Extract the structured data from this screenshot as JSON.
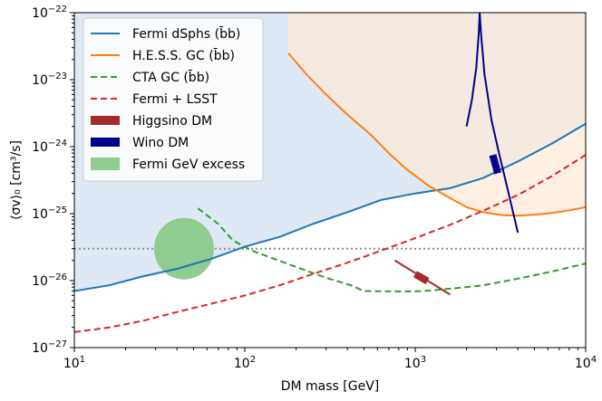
{
  "chart_data": {
    "type": "line",
    "xscale": "log",
    "yscale": "log",
    "xlim": [
      10,
      10000
    ],
    "ylim": [
      1e-27,
      1e-22
    ],
    "xlabel": "DM mass [GeV]",
    "ylabel": "⟨σv⟩₀ [cm³/s]",
    "x_ticks": [
      {
        "value": 10,
        "base": "10",
        "exp": "1"
      },
      {
        "value": 100,
        "base": "10",
        "exp": "2"
      },
      {
        "value": 1000,
        "base": "10",
        "exp": "3"
      },
      {
        "value": 10000,
        "base": "10",
        "exp": "4"
      }
    ],
    "y_ticks": [
      {
        "value": 1e-27,
        "base": "10",
        "exp": "−27"
      },
      {
        "value": 1e-26,
        "base": "10",
        "exp": "−26"
      },
      {
        "value": 1e-25,
        "base": "10",
        "exp": "−25"
      },
      {
        "value": 1e-24,
        "base": "10",
        "exp": "−24"
      },
      {
        "value": 1e-23,
        "base": "10",
        "exp": "−23"
      },
      {
        "value": 1e-22,
        "base": "10",
        "exp": "−22"
      }
    ],
    "thermal_relic": {
      "y": 3e-26,
      "color": "#8c8c8c"
    },
    "series": [
      {
        "name": "Fermi dSphs (b̄b)",
        "style": "solid",
        "color": "#1f77b4",
        "fill": "#dfe9f5",
        "x": [
          10,
          16,
          25,
          40,
          63,
          100,
          160,
          250,
          400,
          630,
          1000,
          1600,
          2500,
          4000,
          6300,
          10000
        ],
        "y": [
          7e-27,
          8.5e-27,
          1.15e-26,
          1.5e-26,
          2.1e-26,
          3.2e-26,
          4.5e-26,
          7e-26,
          1.05e-25,
          1.6e-25,
          2e-25,
          2.4e-25,
          3.4e-25,
          6e-25,
          1.1e-24,
          2.2e-24
        ]
      },
      {
        "name": "H.E.S.S. GC (b̄b)",
        "style": "solid",
        "color": "#ff7f0e",
        "fill": "#fce9d8",
        "x": [
          180,
          230,
          300,
          400,
          550,
          700,
          900,
          1200,
          1600,
          2000,
          2500,
          3200,
          4000,
          5000,
          6300,
          8000,
          10000
        ],
        "y": [
          2.5e-23,
          1.2e-23,
          6e-24,
          3e-24,
          1.5e-24,
          8e-25,
          4.5e-25,
          2.6e-25,
          1.7e-25,
          1.25e-25,
          1.05e-25,
          9.5e-26,
          9.3e-26,
          9.6e-26,
          1.02e-25,
          1.12e-25,
          1.25e-25
        ]
      },
      {
        "name": "CTA GC (b̄b)",
        "style": "dashed",
        "color": "#2ca02c",
        "x": [
          53,
          70,
          85,
          110,
          150,
          200,
          300,
          420,
          500,
          700,
          1000,
          1300,
          1800,
          2500,
          3500,
          5000,
          7000,
          10000
        ],
        "y": [
          1.2e-25,
          7e-26,
          4e-26,
          2.8e-26,
          2.1e-26,
          1.6e-26,
          1.1e-26,
          8.5e-27,
          7e-27,
          6.9e-27,
          6.9e-27,
          7.2e-27,
          7.8e-27,
          8.5e-27,
          1e-26,
          1.2e-26,
          1.45e-26,
          1.8e-26
        ]
      },
      {
        "name": "Fermi + LSST",
        "style": "dashed",
        "color": "#d62728",
        "x": [
          10,
          16,
          25,
          40,
          63,
          100,
          160,
          250,
          400,
          630,
          1000,
          1600,
          2500,
          4000,
          6300,
          10000
        ],
        "y": [
          1.7e-27,
          2e-27,
          2.5e-27,
          3.4e-27,
          4.5e-27,
          6e-27,
          8.5e-27,
          1.25e-26,
          1.85e-26,
          2.8e-26,
          4.3e-26,
          6.8e-26,
          1.1e-25,
          1.9e-25,
          3.6e-25,
          7.5e-25
        ]
      }
    ],
    "wino_curve": {
      "name": "Wino DM",
      "color": "#00008b",
      "x": [
        2000,
        2150,
        2280,
        2360,
        2390,
        2430,
        2550,
        2800,
        3100,
        3500,
        4000
      ],
      "y": [
        2e-24,
        5e-24,
        1.5e-23,
        5e-23,
        1e-22,
        5e-23,
        1.2e-23,
        2.5e-24,
        8e-25,
        2.2e-25,
        5.2e-26
      ],
      "band": {
        "x": [
          2850,
          3050
        ],
        "y": [
          7.5e-25,
          4e-25
        ]
      }
    },
    "higgsino": {
      "name": "Higgsino DM",
      "color": "#a52a2a",
      "line": {
        "x": [
          760,
          1600
        ],
        "y": [
          2e-26,
          6.2e-27
        ]
      },
      "band": {
        "x": [
          1000,
          1180
        ],
        "y": [
          1.25e-26,
          9.8e-27
        ]
      }
    },
    "gev_excess": {
      "name": "Fermi GeV excess",
      "color": "#8fcc8f",
      "center": {
        "x": 44,
        "y": 3e-26
      }
    },
    "legend": {
      "position": "top-left",
      "entries": [
        {
          "label": "Fermi dSphs (b̄b)",
          "color": "#1f77b4",
          "style": "line"
        },
        {
          "label": "H.E.S.S. GC (b̄b)",
          "color": "#ff7f0e",
          "style": "line"
        },
        {
          "label": "CTA GC (b̄b)",
          "color": "#2ca02c",
          "style": "dashed"
        },
        {
          "label": "Fermi + LSST",
          "color": "#d62728",
          "style": "dashed"
        },
        {
          "label": "Higgsino DM",
          "color": "#a52a2a",
          "style": "band"
        },
        {
          "label": "Wino DM",
          "color": "#00008b",
          "style": "band"
        },
        {
          "label": "Fermi GeV excess",
          "color": "#8fcc8f",
          "style": "patch"
        }
      ]
    }
  }
}
